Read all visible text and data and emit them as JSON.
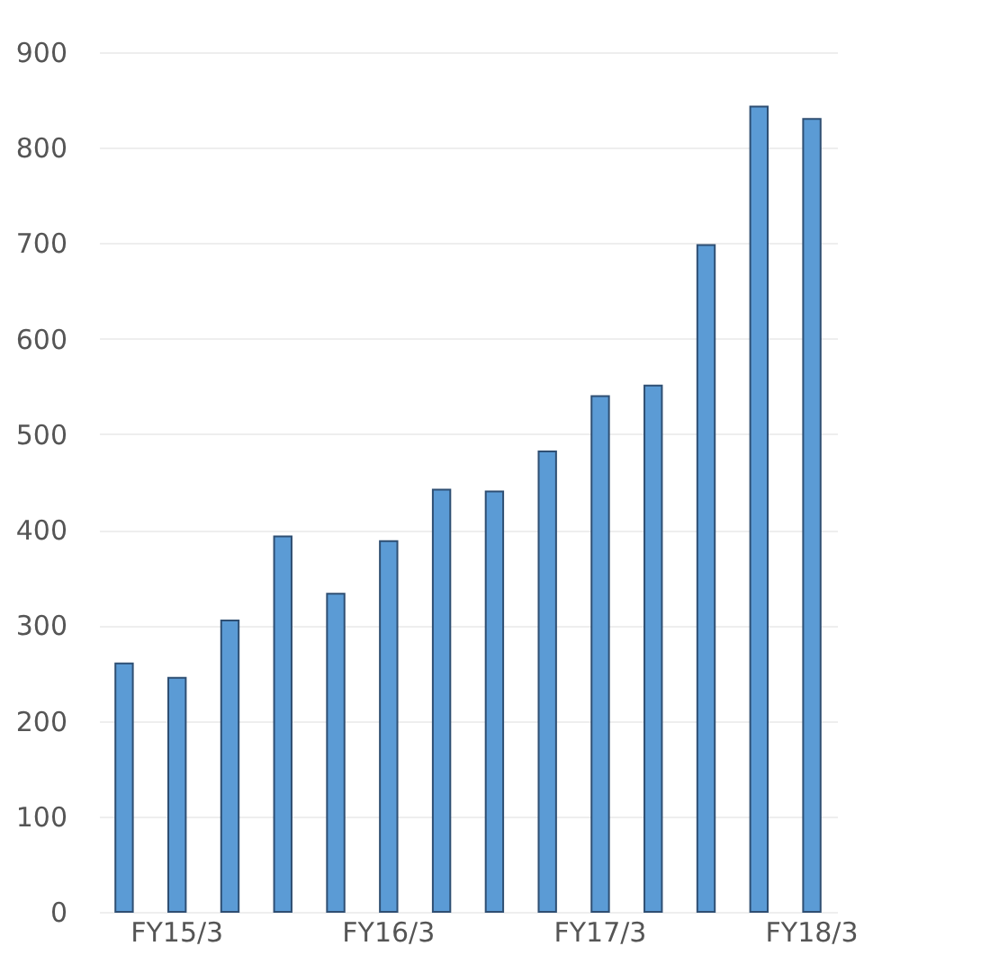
{
  "chart_data": {
    "type": "bar",
    "categories": [
      null,
      "FY15/3",
      null,
      null,
      null,
      "FY16/3",
      null,
      null,
      null,
      "FY17/3",
      null,
      null,
      null,
      "FY18/3"
    ],
    "values": [
      260,
      245,
      305,
      393,
      333,
      388,
      442,
      440,
      482,
      540,
      551,
      698,
      843,
      830
    ],
    "color": "#5b9bd5",
    "ylim": [
      0,
      900
    ],
    "yticks": [
      0,
      100,
      200,
      300,
      400,
      500,
      600,
      700,
      800,
      900
    ],
    "grid": "y"
  }
}
